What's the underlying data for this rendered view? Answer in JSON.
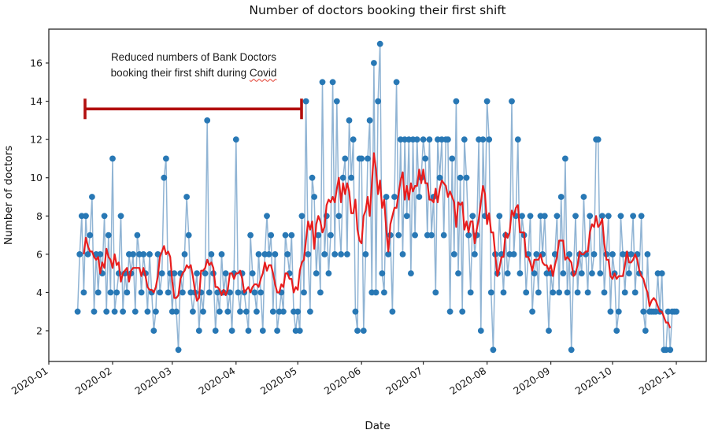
{
  "figure": {
    "title": "Number of doctors booking their first shift",
    "xlabel": "Date",
    "ylabel": "Number of doctors"
  },
  "annotation": {
    "line1": "Reduced numbers of Bank Doctors",
    "line2_prefix": "booking their first shift during ",
    "line2_highlight": "Covid",
    "bracket_color": "#b20f0e",
    "bracket_span": [
      "2020-01-19",
      "2020-05-01"
    ],
    "bracket_value_level": 13.6
  },
  "chart_data": {
    "type": "line",
    "title": "Number of doctors booking their first shift",
    "xlabel": "Date",
    "ylabel": "Number of doctors",
    "x_start_date": "2020-01-15",
    "x_tick_labels": [
      "2020-01",
      "2020-02",
      "2020-03",
      "2020-04",
      "2020-05",
      "2020-06",
      "2020-07",
      "2020-08",
      "2020-09",
      "2020-10",
      "2020-11"
    ],
    "x_tick_day_offsets": [
      0,
      31,
      60,
      91,
      121,
      152,
      182,
      213,
      244,
      274,
      305
    ],
    "y_ticks": [
      2,
      4,
      6,
      8,
      10,
      12,
      14,
      16
    ],
    "ylim": [
      0.4,
      17.8
    ],
    "grid": false,
    "legend": "none",
    "series": [
      {
        "name": "daily_first_shift_bookings",
        "style": "line+markers",
        "line_color": "rgba(52,118,176,0.55)",
        "marker_color": "#2878b5",
        "values": [
          3,
          6,
          8,
          4,
          8,
          6,
          7,
          9,
          3,
          6,
          4,
          6,
          5,
          8,
          3,
          7,
          4,
          11,
          3,
          4,
          5,
          8,
          3,
          5,
          4,
          6,
          5,
          6,
          3,
          7,
          6,
          4,
          6,
          5,
          3,
          6,
          4,
          2,
          3,
          6,
          4,
          5,
          10,
          11,
          4,
          5,
          3,
          5,
          3,
          1,
          5,
          4,
          6,
          9,
          7,
          4,
          3,
          4,
          5,
          2,
          4,
          3,
          5,
          13,
          4,
          6,
          5,
          2,
          4,
          3,
          6,
          4,
          5,
          3,
          4,
          2,
          5,
          12,
          4,
          3,
          5,
          4,
          3,
          2,
          7,
          5,
          4,
          3,
          6,
          4,
          2,
          6,
          8,
          6,
          7,
          3,
          6,
          2,
          3,
          4,
          3,
          7,
          6,
          5,
          7,
          3,
          2,
          3,
          2,
          8,
          4,
          14,
          6,
          3,
          10,
          9,
          5,
          7,
          4,
          15,
          6,
          8,
          5,
          7,
          15,
          6,
          14,
          8,
          6,
          10,
          11,
          6,
          13,
          10,
          12,
          3,
          2,
          11,
          11,
          2,
          6,
          11,
          13,
          4,
          16,
          4,
          14,
          17,
          5,
          4,
          9,
          6,
          7,
          3,
          9,
          15,
          7,
          12,
          6,
          12,
          8,
          12,
          5,
          12,
          7,
          12,
          9,
          10,
          12,
          11,
          7,
          12,
          7,
          9,
          4,
          12,
          10,
          12,
          7,
          12,
          12,
          3,
          11,
          6,
          14,
          5,
          10,
          3,
          12,
          10,
          7,
          4,
          8,
          6,
          7,
          12,
          2,
          12,
          8,
          14,
          12,
          4,
          1,
          6,
          5,
          8,
          6,
          4,
          7,
          5,
          6,
          14,
          6,
          8,
          12,
          5,
          8,
          7,
          4,
          6,
          8,
          3,
          5,
          6,
          4,
          8,
          6,
          8,
          5,
          2,
          5,
          4,
          6,
          8,
          4,
          9,
          5,
          11,
          4,
          6,
          1,
          5,
          8,
          4,
          6,
          5,
          9,
          6,
          4,
          8,
          5,
          6,
          12,
          12,
          5,
          8,
          4,
          6,
          8,
          3,
          6,
          5,
          2,
          3,
          8,
          6,
          4,
          6,
          5,
          6,
          8,
          4,
          6,
          5,
          8,
          3,
          2,
          6,
          3,
          3,
          3,
          3,
          5,
          3,
          5,
          1,
          1,
          3,
          1,
          3,
          3,
          3
        ]
      },
      {
        "name": "rolling_mean",
        "style": "line",
        "line_color": "#e81e1e",
        "derived": "centered_rolling_mean_of_series_0",
        "window": 7
      }
    ]
  }
}
